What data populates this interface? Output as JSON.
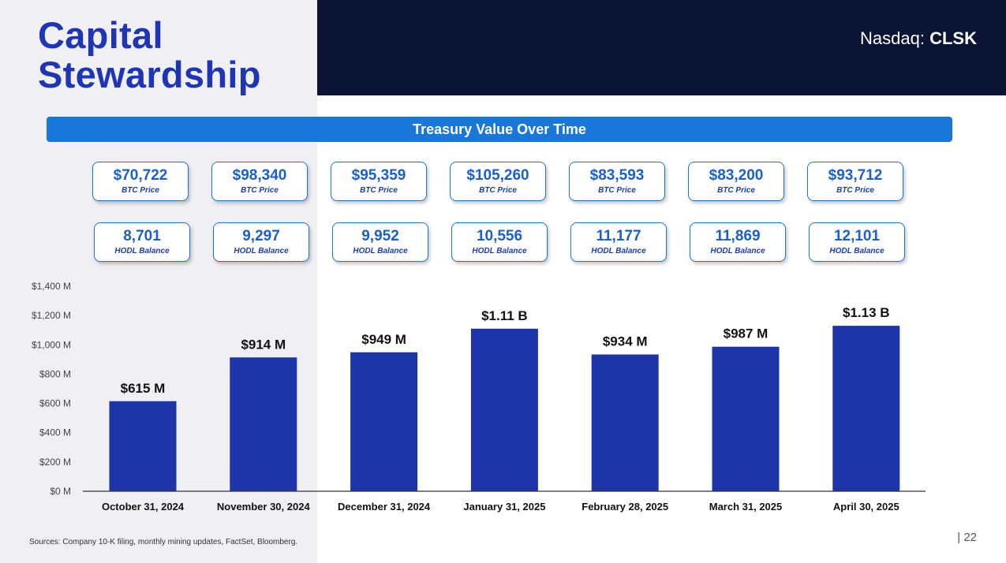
{
  "header": {
    "title_line1": "Capital",
    "title_line2": "Stewardship",
    "ticker_prefix": "Nasdaq: ",
    "ticker_symbol": "CLSK"
  },
  "section_title": "Treasury Value Over Time",
  "cards": [
    {
      "btc_price": "$70,722",
      "btc_label": "BTC Price",
      "hodl": "8,701",
      "hodl_label": "HODL Balance"
    },
    {
      "btc_price": "$98,340",
      "btc_label": "BTC Price",
      "hodl": "9,297",
      "hodl_label": "HODL Balance"
    },
    {
      "btc_price": "$95,359",
      "btc_label": "BTC Price",
      "hodl": "9,952",
      "hodl_label": "HODL Balance"
    },
    {
      "btc_price": "$105,260",
      "btc_label": "BTC Price",
      "hodl": "10,556",
      "hodl_label": "HODL Balance"
    },
    {
      "btc_price": "$83,593",
      "btc_label": "BTC Price",
      "hodl": "11,177",
      "hodl_label": "HODL Balance"
    },
    {
      "btc_price": "$83,200",
      "btc_label": "BTC Price",
      "hodl": "11,869",
      "hodl_label": "HODL Balance"
    },
    {
      "btc_price": "$93,712",
      "btc_label": "BTC Price",
      "hodl": "12,101",
      "hodl_label": "HODL Balance"
    }
  ],
  "chart_data": {
    "type": "bar",
    "title": "Treasury Value Over Time",
    "categories": [
      "October 31, 2024",
      "November 30, 2024",
      "December 31, 2024",
      "January 31, 2025",
      "February 28, 2025",
      "March 31, 2025",
      "April 30, 2025"
    ],
    "values": [
      615,
      914,
      949,
      1110,
      934,
      987,
      1130
    ],
    "data_labels": [
      "$615 M",
      "$914 M",
      "$949 M",
      "$1.11 B",
      "$934 M",
      "$987 M",
      "$1.13 B"
    ],
    "ylim": [
      0,
      1400
    ],
    "yticks": [
      0,
      200,
      400,
      600,
      800,
      1000,
      1200,
      1400
    ],
    "ytick_labels": [
      "$0 M",
      "$200 M",
      "$400 M",
      "$600 M",
      "$800 M",
      "$1,000 M",
      "$1,200 M",
      "$1,400 M"
    ],
    "xlabel": "",
    "ylabel": "",
    "grid": false,
    "bar_color": "#1e35aa"
  },
  "footer": {
    "sources": "Sources: Company 10-K filing, monthly mining updates, FactSet, Bloomberg.",
    "page": "| 22"
  }
}
